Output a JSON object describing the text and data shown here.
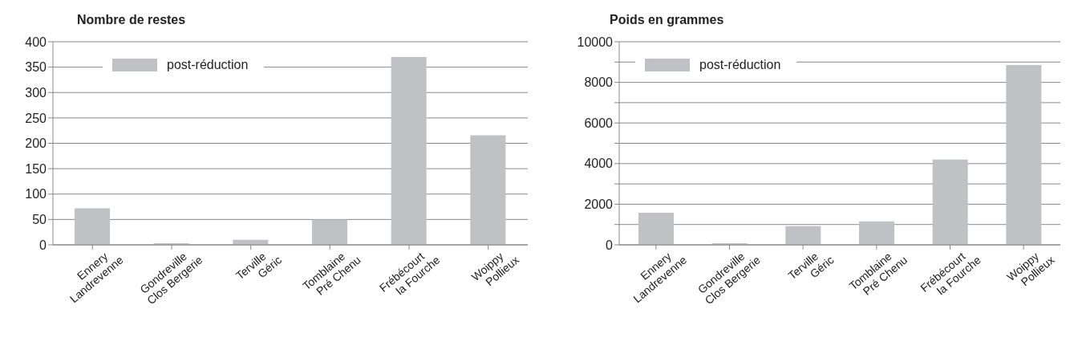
{
  "chart_data": [
    {
      "type": "bar",
      "title": "Nombre de restes",
      "categories": [
        "Ennery\nLandrevenne",
        "Gondreville\nClos Bergerie",
        "Terville\nGéric",
        "Tomblaine\nPré Chenu",
        "Frébécourt\nla Fourche",
        "Woippy\nPollieux"
      ],
      "series": [
        {
          "name": "post-réduction",
          "color": "#c0c1c5",
          "values": [
            72,
            3,
            10,
            50,
            370,
            216
          ]
        }
      ],
      "ylim": [
        0,
        400
      ],
      "yticks": [
        0,
        50,
        100,
        150,
        200,
        250,
        300,
        350,
        400
      ],
      "grid": "y",
      "legend": "top left"
    },
    {
      "type": "bar",
      "title": "Poids en grammes",
      "categories": [
        "Ennery\nLandrevenne",
        "Gondreville\nClos Bergerie",
        "Terville\nGéric",
        "Tomblaine\nPré Chenu",
        "Frébécourt\nla Fourche",
        "Woippy\nPollieux"
      ],
      "series": [
        {
          "name": "post-réduction",
          "color": "#c0c1c5",
          "values": [
            1580,
            80,
            920,
            1160,
            4200,
            8850
          ]
        }
      ],
      "ylim": [
        0,
        10000
      ],
      "yticks": [
        0,
        {
          "value": 1000,
          "label": null
        },
        2000,
        {
          "value": 3000,
          "label": null
        },
        4000,
        {
          "value": 5000,
          "label": null
        },
        6000,
        {
          "value": 7000,
          "label": null
        },
        8000,
        {
          "value": 9000,
          "label": null
        },
        10000
      ],
      "grid": "y",
      "legend": "top left"
    }
  ]
}
